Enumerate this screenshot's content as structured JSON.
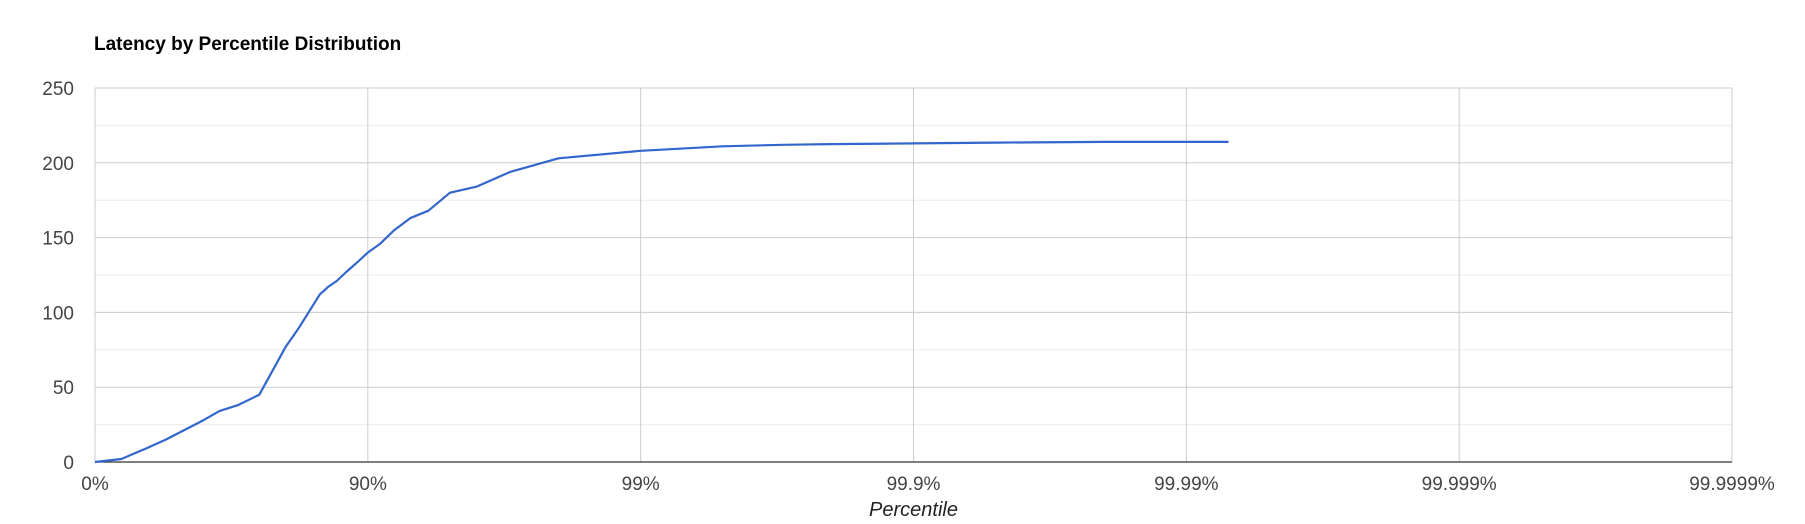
{
  "chart_data": {
    "type": "line",
    "title": "Latency by Percentile Distribution",
    "xlabel": "Percentile",
    "ylabel": "",
    "x_scale": "log-inverse",
    "x_ticks": [
      "0%",
      "90%",
      "99%",
      "99.9%",
      "99.99%",
      "99.999%",
      "99.9999%"
    ],
    "y_ticks": [
      "0",
      "50",
      "100",
      "150",
      "200",
      "250"
    ],
    "ylim": [
      0,
      250
    ],
    "grid": true,
    "legend": "none",
    "series": [
      {
        "color": "#3366cc",
        "points": [
          {
            "x": 0,
            "y": 0
          },
          {
            "x": 20,
            "y": 2
          },
          {
            "x": 35,
            "y": 9
          },
          {
            "x": 45,
            "y": 15
          },
          {
            "x": 60,
            "y": 28
          },
          {
            "x": 65,
            "y": 34
          },
          {
            "x": 70,
            "y": 38
          },
          {
            "x": 75,
            "y": 45
          },
          {
            "x": 80,
            "y": 77
          },
          {
            "x": 82,
            "y": 89
          },
          {
            "x": 85,
            "y": 112
          },
          {
            "x": 86,
            "y": 117
          },
          {
            "x": 87,
            "y": 121
          },
          {
            "x": 88,
            "y": 127
          },
          {
            "x": 89,
            "y": 133
          },
          {
            "x": 90,
            "y": 140
          },
          {
            "x": 91,
            "y": 146
          },
          {
            "x": 92,
            "y": 155
          },
          {
            "x": 93,
            "y": 163
          },
          {
            "x": 94,
            "y": 168
          },
          {
            "x": 95,
            "y": 180
          },
          {
            "x": 96,
            "y": 184
          },
          {
            "x": 97,
            "y": 194
          },
          {
            "x": 98,
            "y": 203
          },
          {
            "x": 99,
            "y": 208
          },
          {
            "x": 99.5,
            "y": 211
          },
          {
            "x": 99.7,
            "y": 212
          },
          {
            "x": 99.8,
            "y": 212.5
          },
          {
            "x": 99.9,
            "y": 213
          },
          {
            "x": 99.95,
            "y": 213.5
          },
          {
            "x": 99.98,
            "y": 214
          },
          {
            "x": 99.99,
            "y": 214
          },
          {
            "x": 99.993,
            "y": 214
          }
        ]
      }
    ]
  }
}
